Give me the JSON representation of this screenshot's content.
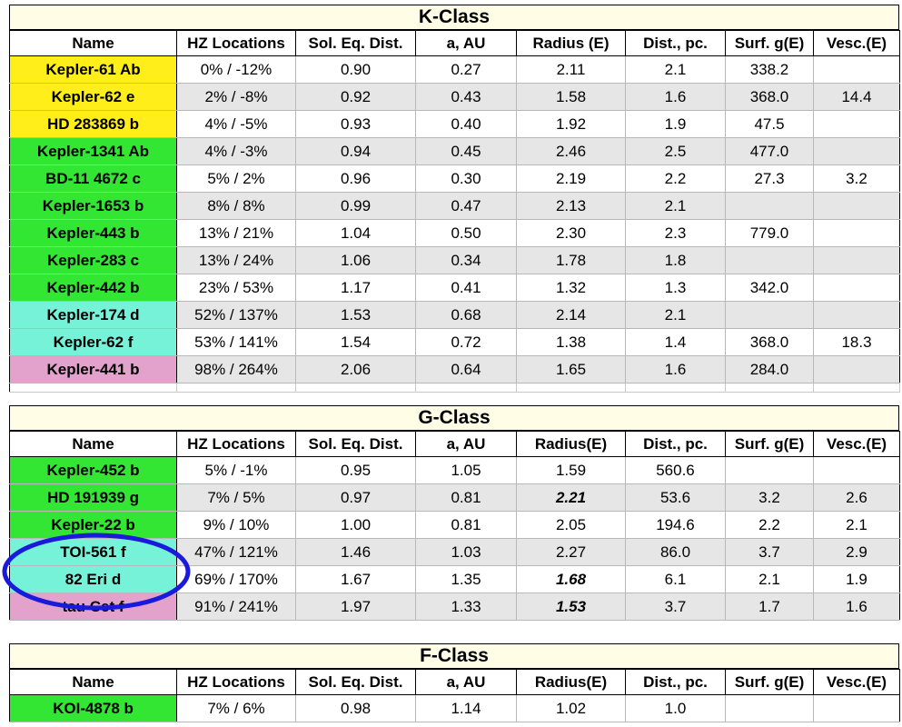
{
  "headers": [
    "Name",
    "HZ Locations",
    "Sol. Eq. Dist.",
    "a, AU",
    "Radius (E)",
    "Dist., pc.",
    "Surf. g(E)",
    "Vesc.(E)"
  ],
  "headers_alt": [
    "Name",
    "HZ Locations",
    "Sol. Eq. Dist.",
    "a, AU",
    "Radius(E)",
    "Dist., pc.",
    "Surf. g(E)",
    "Vesc.(E)"
  ],
  "sections": [
    {
      "title": "K-Class",
      "rows": [
        {
          "name": "Kepler-61 Ab",
          "hz": "0% / -12%",
          "sol": "0.90",
          "a": "0.27",
          "radius": "2.11",
          "dist": "2.1",
          "g": "338.2",
          "vesc": "",
          "color": "#ffee1a"
        },
        {
          "name": "Kepler-62 e",
          "hz": "2% / -8%",
          "sol": "0.92",
          "a": "0.43",
          "radius": "1.58",
          "dist": "1.6",
          "g": "368.0",
          "vesc": "14.4",
          "color": "#ffee1a"
        },
        {
          "name": "HD 283869 b",
          "hz": "4% / -5%",
          "sol": "0.93",
          "a": "0.40",
          "radius": "1.92",
          "dist": "1.9",
          "g": "47.5",
          "vesc": "",
          "color": "#ffee1a"
        },
        {
          "name": "Kepler-1341 Ab",
          "hz": "4% / -3%",
          "sol": "0.94",
          "a": "0.45",
          "radius": "2.46",
          "dist": "2.5",
          "g": "477.0",
          "vesc": "",
          "color": "#33e633"
        },
        {
          "name": "BD-11 4672 c",
          "hz": "5% / 2%",
          "sol": "0.96",
          "a": "0.30",
          "radius": "2.19",
          "dist": "2.2",
          "g": "27.3",
          "vesc": "3.2",
          "color": "#33e633"
        },
        {
          "name": "Kepler-1653 b",
          "hz": "8% / 8%",
          "sol": "0.99",
          "a": "0.47",
          "radius": "2.13",
          "dist": "2.1",
          "g": "",
          "vesc": "",
          "color": "#33e633"
        },
        {
          "name": "Kepler-443 b",
          "hz": "13% / 21%",
          "sol": "1.04",
          "a": "0.50",
          "radius": "2.30",
          "dist": "2.3",
          "g": "779.0",
          "vesc": "",
          "color": "#33e633"
        },
        {
          "name": "Kepler-283 c",
          "hz": "13% / 24%",
          "sol": "1.06",
          "a": "0.34",
          "radius": "1.78",
          "dist": "1.8",
          "g": "",
          "vesc": "",
          "color": "#33e633"
        },
        {
          "name": "Kepler-442 b",
          "hz": "23% / 53%",
          "sol": "1.17",
          "a": "0.41",
          "radius": "1.32",
          "dist": "1.3",
          "g": "342.0",
          "vesc": "",
          "color": "#33e633"
        },
        {
          "name": "Kepler-174 d",
          "hz": "52% / 137%",
          "sol": "1.53",
          "a": "0.68",
          "radius": "2.14",
          "dist": "2.1",
          "g": "",
          "vesc": "",
          "color": "#76f2d8"
        },
        {
          "name": "Kepler-62 f",
          "hz": "53% / 141%",
          "sol": "1.54",
          "a": "0.72",
          "radius": "1.38",
          "dist": "1.4",
          "g": "368.0",
          "vesc": "18.3",
          "color": "#76f2d8"
        },
        {
          "name": "Kepler-441 b",
          "hz": "98% / 264%",
          "sol": "2.06",
          "a": "0.64",
          "radius": "1.65",
          "dist": "1.6",
          "g": "284.0",
          "vesc": "",
          "color": "#e2a2cc"
        }
      ]
    },
    {
      "title": "G-Class",
      "rows": [
        {
          "name": "Kepler-452 b",
          "hz": "5% / -1%",
          "sol": "0.95",
          "a": "1.05",
          "radius": "1.59",
          "dist": "560.6",
          "g": "",
          "vesc": "",
          "color": "#33e633"
        },
        {
          "name": "HD 191939 g",
          "hz": "7% / 5%",
          "sol": "0.97",
          "a": "0.81",
          "radius": "2.21",
          "dist": "53.6",
          "g": "3.2",
          "vesc": "2.6",
          "color": "#33e633",
          "emph": true
        },
        {
          "name": "Kepler-22 b",
          "hz": "9% / 10%",
          "sol": "1.00",
          "a": "0.81",
          "radius": "2.05",
          "dist": "194.6",
          "g": "2.2",
          "vesc": "2.1",
          "color": "#33e633"
        },
        {
          "name": "TOI-561 f",
          "hz": "47% / 121%",
          "sol": "1.46",
          "a": "1.03",
          "radius": "2.27",
          "dist": "86.0",
          "g": "3.7",
          "vesc": "2.9",
          "color": "#76f2d8"
        },
        {
          "name": "82 Eri d",
          "hz": "69% / 170%",
          "sol": "1.67",
          "a": "1.35",
          "radius": "1.68",
          "dist": "6.1",
          "g": "2.1",
          "vesc": "1.9",
          "color": "#76f2d8",
          "emph": true
        },
        {
          "name": "tau Cet f",
          "hz": "91% / 241%",
          "sol": "1.97",
          "a": "1.33",
          "radius": "1.53",
          "dist": "3.7",
          "g": "1.7",
          "vesc": "1.6",
          "color": "#e2a2cc",
          "emph": true
        }
      ]
    },
    {
      "title": "F-Class",
      "rows": [
        {
          "name": "KOI-4878 b",
          "hz": "7% / 6%",
          "sol": "0.98",
          "a": "1.14",
          "radius": "1.02",
          "dist": "1.0",
          "g": "",
          "vesc": "",
          "color": "#33e633"
        }
      ]
    }
  ],
  "annotation": {
    "shape": "ellipse",
    "color": "#1a1adb"
  }
}
